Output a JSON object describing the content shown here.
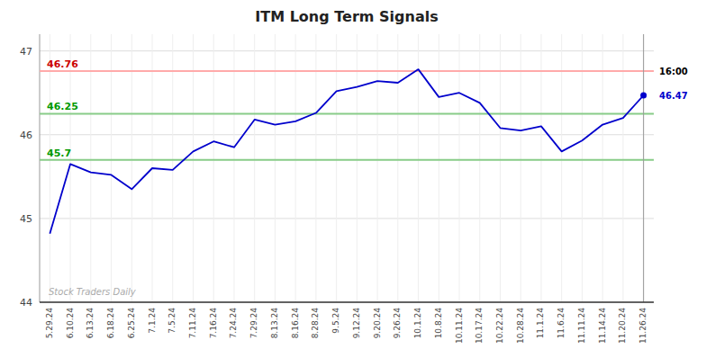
{
  "chart_data": {
    "type": "line",
    "title": "ITM Long Term Signals",
    "categories": [
      "5.29.24",
      "6.10.24",
      "6.13.24",
      "6.18.24",
      "6.25.24",
      "7.1.24",
      "7.5.24",
      "7.11.24",
      "7.16.24",
      "7.24.24",
      "7.29.24",
      "8.13.24",
      "8.16.24",
      "8.28.24",
      "9.5.24",
      "9.12.24",
      "9.20.24",
      "9.26.24",
      "10.1.24",
      "10.8.24",
      "10.11.24",
      "10.17.24",
      "10.22.24",
      "10.28.24",
      "11.1.24",
      "11.6.24",
      "11.11.24",
      "11.14.24",
      "11.20.24",
      "11.26.24"
    ],
    "values": [
      44.82,
      45.65,
      45.55,
      45.52,
      45.35,
      45.6,
      45.58,
      45.8,
      45.92,
      45.85,
      46.18,
      46.12,
      46.16,
      46.26,
      46.52,
      46.57,
      46.64,
      46.62,
      46.78,
      46.45,
      46.5,
      46.38,
      46.08,
      46.05,
      46.1,
      45.8,
      45.93,
      46.12,
      46.2,
      46.47
    ],
    "color": "#0000cc",
    "ylim": [
      44.0,
      47.2
    ],
    "yticks": [
      44,
      45,
      46,
      47
    ],
    "grid": true,
    "reference_lines": [
      {
        "value": 46.76,
        "label": "46.76",
        "color": "#ffaaaa",
        "label_color": "#cc0000"
      },
      {
        "value": 46.25,
        "label": "46.25",
        "color": "#88cc88",
        "label_color": "#009900"
      },
      {
        "value": 45.7,
        "label": "45.7",
        "color": "#88cc88",
        "label_color": "#009900"
      }
    ],
    "annotations": [
      {
        "text": "16:00",
        "y": 46.76,
        "color": "#000000"
      },
      {
        "text": "46.47",
        "y": 46.47,
        "color": "#0000cc"
      }
    ],
    "watermark": "Stock Traders Daily"
  }
}
